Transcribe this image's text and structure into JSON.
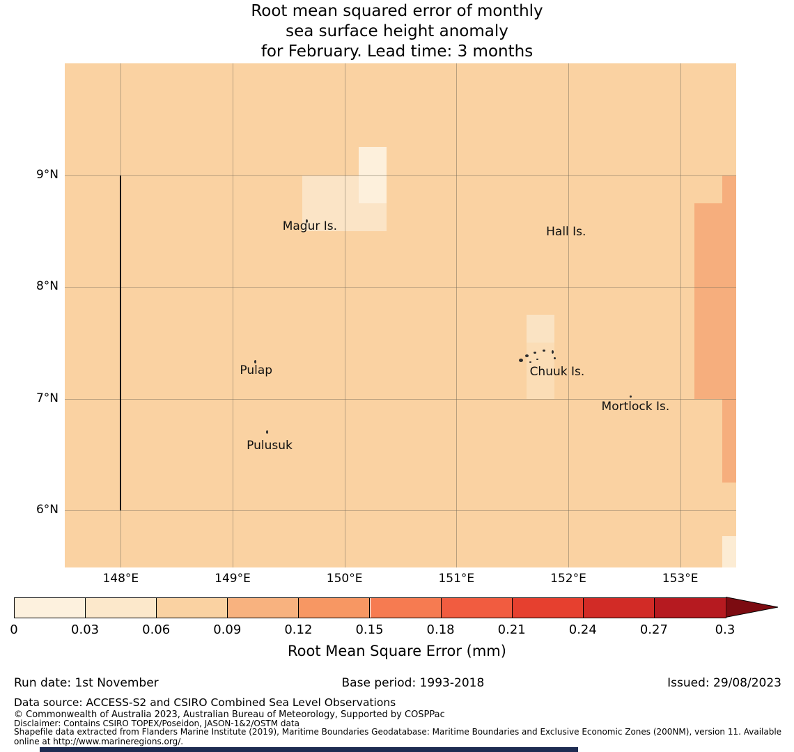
{
  "title": {
    "line1": "Root mean squared error of monthly",
    "line2": "sea surface height anomaly",
    "line3": "for February. Lead time: 3 months"
  },
  "footer": {
    "run_date": "Run date: 1st November",
    "base_period": "Base period: 1993-2018",
    "issued": "Issued: 29/08/2023",
    "data_source": "Data source: ACCESS-S2 and CSIRO Combined Sea Level Observations",
    "copyright": "© Commonwealth of Australia 2023, Australian Bureau of Meteorology, Supported by COSPPac",
    "disclaimer": "Disclaimer: Contains CSIRO TOPEX/Poseidon, JASON-1&2/OSTM data",
    "shapefile": "Shapefile data extracted from Flanders Marine Institute (2019), Maritime Boundaries Geodatabase: Maritime Boundaries and Exclusive Economic Zones (200NM), version 11. Available online at http://www.marineregions.org/.",
    "banner_color": "#1e2c52"
  },
  "chart_data": {
    "type": "heatmap",
    "title": "Root mean squared error of monthly sea surface height anomaly for February. Lead time: 3 months",
    "variable": "Root Mean Square Error (mm)",
    "x_axis": {
      "ticks": [
        148,
        149,
        150,
        151,
        152,
        153
      ],
      "tick_labels": [
        "148°E",
        "149°E",
        "150°E",
        "151°E",
        "152°E",
        "153°E"
      ],
      "range_deg_east": [
        147.5,
        153.5
      ]
    },
    "y_axis": {
      "ticks": [
        9,
        8,
        7,
        6
      ],
      "tick_labels": [
        "9°N",
        "8°N",
        "7°N",
        "6°N"
      ],
      "range_deg_north": [
        5.49,
        10.0
      ]
    },
    "grid_lons": [
      148,
      149,
      150,
      151,
      152,
      153
    ],
    "grid_lats": [
      6,
      7,
      8,
      9
    ],
    "grid_on": true,
    "background_value_mm": 0.08,
    "background_color": "#fad2a2",
    "cells": [
      {
        "lon0": 149.625,
        "lat0": 8.5,
        "lon1": 150.375,
        "lat1": 9.0,
        "value_mm": 0.045,
        "color": "#fbe4c6"
      },
      {
        "lon0": 150.125,
        "lat0": 8.75,
        "lon1": 150.375,
        "lat1": 9.25,
        "value_mm": 0.02,
        "color": "#fdf0dc"
      },
      {
        "lon0": 151.625,
        "lat0": 7.5,
        "lon1": 151.875,
        "lat1": 7.75,
        "value_mm": 0.045,
        "color": "#fae3c3"
      },
      {
        "lon0": 151.625,
        "lat0": 7.0,
        "lon1": 151.875,
        "lat1": 7.5,
        "value_mm": 0.055,
        "color": "#fbddb6"
      },
      {
        "lon0": 153.375,
        "lat0": 8.75,
        "lon1": 153.5,
        "lat1": 9.0,
        "value_mm": 0.125,
        "color": "#f6ae7d"
      },
      {
        "lon0": 153.125,
        "lat0": 7.0,
        "lon1": 153.5,
        "lat1": 8.75,
        "value_mm": 0.125,
        "color": "#f6ae7d"
      },
      {
        "lon0": 153.375,
        "lat0": 6.25,
        "lon1": 153.5,
        "lat1": 7.0,
        "value_mm": 0.12,
        "color": "#f6ae7d"
      },
      {
        "lon0": 153.375,
        "lat0": 5.49,
        "lon1": 153.5,
        "lat1": 5.77,
        "value_mm": 0.04,
        "color": "#fcecd4"
      }
    ],
    "eez_boundary_line": {
      "lon": 148,
      "lat_from": 6,
      "lat_to": 9
    },
    "islands": [
      {
        "label": "Magur Is.",
        "lon": 149.69,
        "lat": 8.54
      },
      {
        "label": "Hall Is.",
        "lon": 151.98,
        "lat": 8.49
      },
      {
        "label": "Pulap",
        "lon": 149.21,
        "lat": 7.25
      },
      {
        "label": "Chuuk Is.",
        "lon": 151.9,
        "lat": 7.24
      },
      {
        "label": "Mortlock Is.",
        "lon": 152.6,
        "lat": 6.93
      },
      {
        "label": "Pulusuk",
        "lon": 149.33,
        "lat": 6.58
      }
    ],
    "island_marks": [
      {
        "lon": 149.66,
        "lat": 8.59,
        "w": 3,
        "h": 5
      },
      {
        "lon": 149.2,
        "lat": 7.33,
        "w": 3,
        "h": 5
      },
      {
        "lon": 149.31,
        "lat": 6.7,
        "w": 3,
        "h": 5
      },
      {
        "lon": 152.56,
        "lat": 7.02,
        "w": 3,
        "h": 3
      },
      {
        "lon": 151.575,
        "lat": 7.345,
        "w": 6,
        "h": 5
      },
      {
        "lon": 151.63,
        "lat": 7.385,
        "w": 5,
        "h": 4
      },
      {
        "lon": 151.7,
        "lat": 7.41,
        "w": 4,
        "h": 3
      },
      {
        "lon": 151.78,
        "lat": 7.43,
        "w": 4,
        "h": 3
      },
      {
        "lon": 151.86,
        "lat": 7.42,
        "w": 3,
        "h": 5
      },
      {
        "lon": 151.88,
        "lat": 7.36,
        "w": 3,
        "h": 3
      },
      {
        "lon": 151.72,
        "lat": 7.35,
        "w": 3,
        "h": 2
      },
      {
        "lon": 151.66,
        "lat": 7.33,
        "w": 3,
        "h": 2
      }
    ],
    "colorbar": {
      "label": "Root Mean Square Error (mm)",
      "tick_values": [
        0,
        0.03,
        0.06,
        0.09,
        0.12,
        0.15,
        0.18,
        0.21,
        0.24,
        0.27,
        0.3
      ],
      "tick_labels": [
        "0",
        "0.03",
        "0.06",
        "0.09",
        "0.12",
        "0.15",
        "0.18",
        "0.21",
        "0.24",
        "0.27",
        "0.3"
      ],
      "segments": [
        {
          "from": 0.0,
          "to": 0.03,
          "color": "#fdf1de"
        },
        {
          "from": 0.03,
          "to": 0.06,
          "color": "#fce8cb"
        },
        {
          "from": 0.06,
          "to": 0.09,
          "color": "#fad2a2"
        },
        {
          "from": 0.09,
          "to": 0.12,
          "color": "#f8b27f"
        },
        {
          "from": 0.12,
          "to": 0.15,
          "color": "#f79763"
        },
        {
          "from": 0.15,
          "to": 0.18,
          "color": "#f67b51"
        },
        {
          "from": 0.18,
          "to": 0.21,
          "color": "#f15c40"
        },
        {
          "from": 0.21,
          "to": 0.24,
          "color": "#e6402f"
        },
        {
          "from": 0.24,
          "to": 0.27,
          "color": "#d22b26"
        },
        {
          "from": 0.27,
          "to": 0.3,
          "color": "#b61a20"
        }
      ],
      "extend_color": "#7c0b11"
    }
  }
}
